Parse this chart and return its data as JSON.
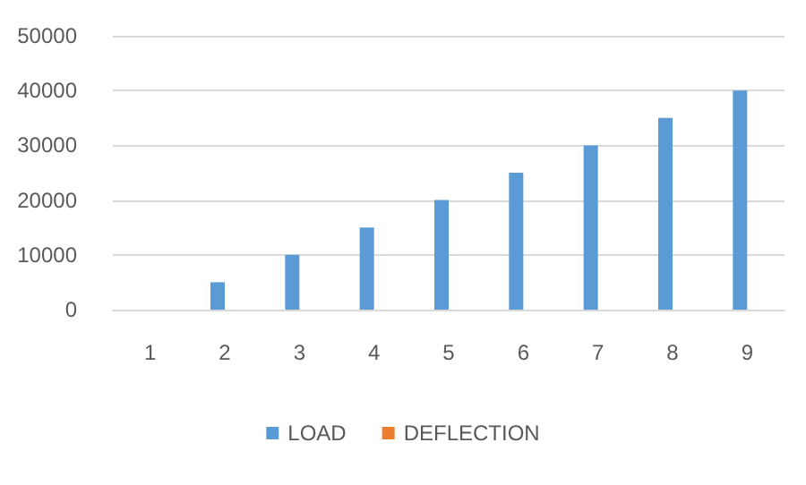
{
  "chart_data": {
    "type": "bar",
    "categories": [
      "1",
      "2",
      "3",
      "4",
      "5",
      "6",
      "7",
      "8",
      "9"
    ],
    "series": [
      {
        "name": "LOAD",
        "color": "#5b9bd5",
        "values": [
          0,
          5000,
          10000,
          15000,
          20000,
          25000,
          30000,
          35000,
          40000
        ]
      },
      {
        "name": "DEFLECTION",
        "color": "#ed7d31",
        "values": [
          0,
          0,
          0,
          0,
          0,
          0,
          0,
          0,
          0
        ]
      }
    ],
    "ylim": [
      0,
      50000
    ],
    "yticks": [
      0,
      10000,
      20000,
      30000,
      40000,
      50000
    ],
    "grid": "y",
    "legend": "bottom"
  }
}
